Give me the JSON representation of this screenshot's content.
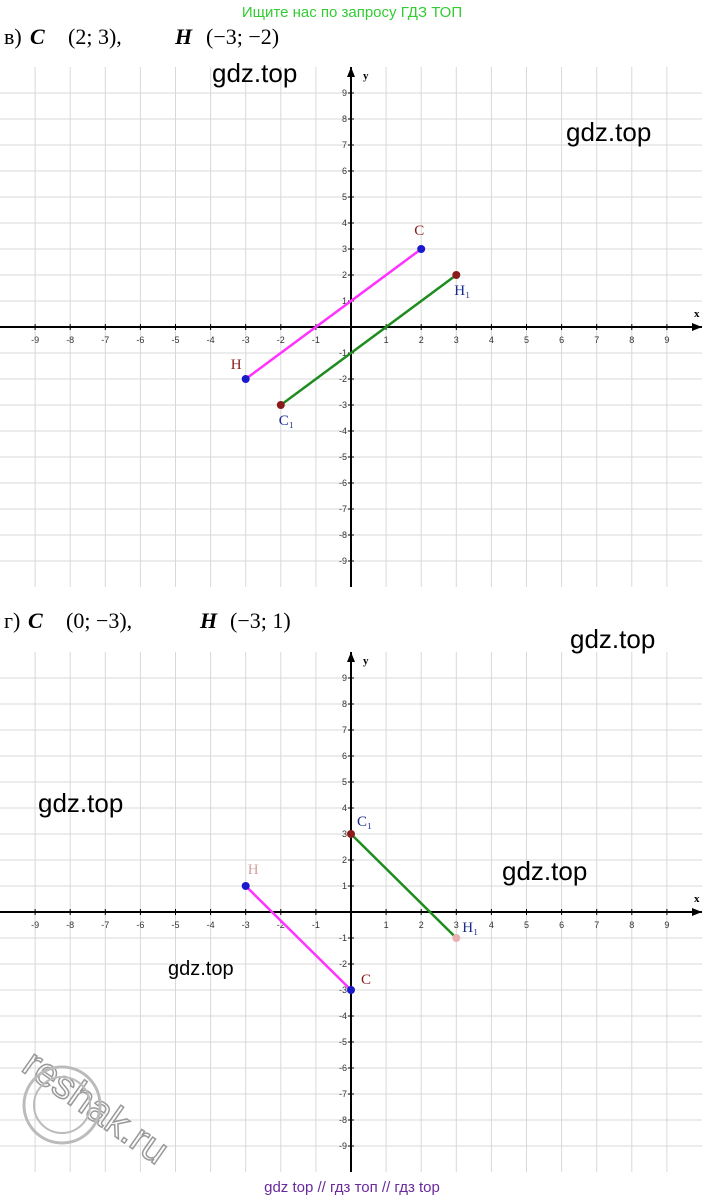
{
  "header": "Ищите нас по запросу ГДЗ ТОП",
  "chart_data": [
    {
      "type": "segments",
      "title_parts": [
        "в)",
        "C",
        "(2; 3),",
        "H",
        "(−3; −2)"
      ],
      "xlabel": "x",
      "ylabel": "y",
      "xlim": [
        -10,
        10
      ],
      "ylim": [
        -10,
        10
      ],
      "xticks": [
        -9,
        -8,
        -7,
        -6,
        -5,
        -4,
        -3,
        -2,
        -1,
        1,
        2,
        3,
        4,
        5,
        6,
        7,
        8,
        9
      ],
      "yticks": [
        -9,
        -8,
        -7,
        -6,
        -5,
        -4,
        -3,
        -2,
        -1,
        1,
        2,
        3,
        4,
        5,
        6,
        7,
        8,
        9
      ],
      "grid": true,
      "series": [
        {
          "color": "#ff33ff",
          "x": [
            2,
            -3
          ],
          "values": [
            3,
            -2
          ],
          "point_labels": [
            "C",
            "H"
          ],
          "point_colors": [
            "#1a1acc",
            "#1a1acc"
          ],
          "label_colors": [
            "#8b1a1a",
            "#8b1a1a"
          ]
        },
        {
          "color": "#1e8c1e",
          "x": [
            -2,
            3
          ],
          "values": [
            -3,
            2
          ],
          "point_labels": [
            "C₁",
            "H₁"
          ],
          "point_colors": [
            "#8b1a1a",
            "#8b1a1a"
          ],
          "label_colors": [
            "#1a2a8c",
            "#1a2a8c"
          ]
        }
      ]
    },
    {
      "type": "segments",
      "title_parts": [
        "г)",
        "C",
        "(0; −3),",
        "H",
        "(−3; 1)"
      ],
      "xlabel": "x",
      "ylabel": "y",
      "xlim": [
        -10,
        10
      ],
      "ylim": [
        -10,
        10
      ],
      "xticks": [
        -9,
        -8,
        -7,
        -6,
        -5,
        -4,
        -3,
        -2,
        -1,
        1,
        2,
        3,
        4,
        5,
        6,
        7,
        8,
        9
      ],
      "yticks": [
        -9,
        -8,
        -7,
        -6,
        -5,
        -4,
        -3,
        -2,
        -1,
        1,
        2,
        3,
        4,
        5,
        6,
        7,
        8,
        9
      ],
      "grid": true,
      "series": [
        {
          "color": "#ff33ff",
          "x": [
            -3,
            0
          ],
          "values": [
            1,
            -3
          ],
          "point_labels": [
            "H",
            "C"
          ],
          "point_colors": [
            "#1a1acc",
            "#1a1acc"
          ],
          "label_colors": [
            "#d4a0a0",
            "#8b1a1a"
          ]
        },
        {
          "color": "#1e8c1e",
          "x": [
            0,
            3
          ],
          "values": [
            3,
            -1
          ],
          "point_labels": [
            "C₁",
            "H₁"
          ],
          "point_colors": [
            "#8b1a1a",
            "#e8b0b0"
          ],
          "label_colors": [
            "#1a2a8c",
            "#1a2a8c"
          ]
        }
      ]
    }
  ],
  "watermarks": [
    "gdz.top",
    "gdz.top",
    "gdz.top",
    "gdz.top",
    "gdz.top",
    "gdz.top"
  ],
  "reshak": "reshak.ru",
  "footer": "gdz top  //  гдз топ  //  гдз top"
}
